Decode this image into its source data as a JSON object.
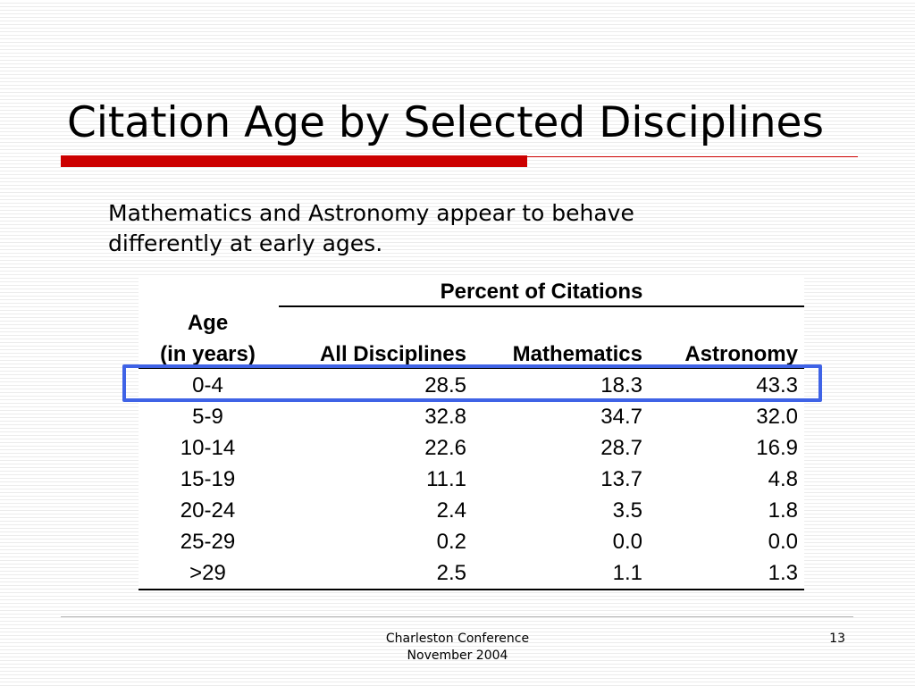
{
  "slide": {
    "title": "Citation Age by Selected Disciplines",
    "subtitle_line1": "Mathematics and Astronomy appear to behave",
    "subtitle_line2": "differently at early ages.",
    "accent_color": "#cc0000",
    "highlight_color": "#3f63e6"
  },
  "table": {
    "group_header": "Percent of Citations",
    "age_header_line1": "Age",
    "age_header_line2": "(in years)",
    "columns": [
      "All Disciplines",
      "Mathematics",
      "Astronomy"
    ],
    "rows": [
      {
        "age": "0-4",
        "all": "28.5",
        "math": "18.3",
        "astro": "43.3"
      },
      {
        "age": "5-9",
        "all": "32.8",
        "math": "34.7",
        "astro": "32.0"
      },
      {
        "age": "10-14",
        "all": "22.6",
        "math": "28.7",
        "astro": "16.9"
      },
      {
        "age": "15-19",
        "all": "11.1",
        "math": "13.7",
        "astro": "4.8"
      },
      {
        "age": "20-24",
        "all": "2.4",
        "math": "3.5",
        "astro": "1.8"
      },
      {
        "age": "25-29",
        "all": "0.2",
        "math": "0.0",
        "astro": "0.0"
      },
      {
        "age": ">29",
        "all": "2.5",
        "math": "1.1",
        "astro": "1.3"
      }
    ],
    "highlighted_row": "0-4"
  },
  "footer": {
    "line1": "Charleston Conference",
    "line2": "November 2004",
    "page_number": "13"
  }
}
